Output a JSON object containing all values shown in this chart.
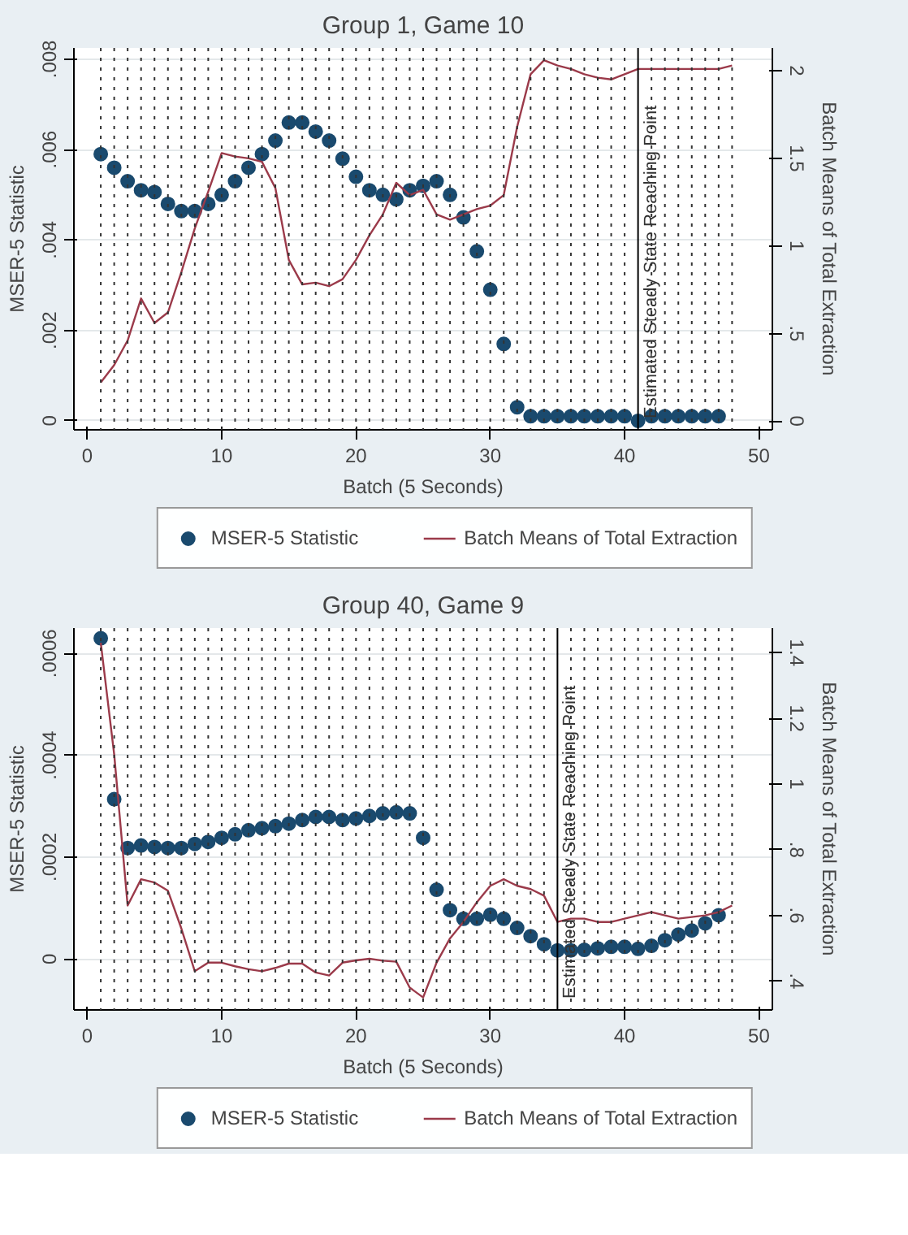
{
  "chart_data": [
    {
      "type": "scatter",
      "title": "Group 1, Game 10",
      "xlabel": "Batch (5 Seconds)",
      "ylabel": "MSER-5 Statistic",
      "y2label": "Batch Means of Total Extraction",
      "xlim": [
        -1,
        51
      ],
      "xticks": [
        0,
        10,
        20,
        30,
        40,
        50
      ],
      "ylim": [
        -0.0002,
        0.00825
      ],
      "yticks": [
        0,
        {
          "value": 0.002,
          "label": ".002"
        },
        {
          "value": 0.004,
          "label": ".004"
        },
        {
          "value": 0.006,
          "label": ".006"
        },
        {
          "value": 0.008,
          "label": ".008"
        }
      ],
      "y2lim": [
        -0.05,
        2.13
      ],
      "y2ticks": [
        0,
        {
          "value": 0.5,
          "label": ".5"
        },
        1,
        1.5,
        2
      ],
      "grid": "y",
      "legend": "bottom",
      "marker": "circle",
      "series": [
        {
          "name": "MSER-5 Statistic",
          "color": "#1a4a6e",
          "x": [
            1,
            2,
            3,
            4,
            5,
            6,
            7,
            8,
            9,
            10,
            11,
            12,
            13,
            14,
            15,
            16,
            17,
            18,
            19,
            20,
            21,
            22,
            23,
            24,
            25,
            26,
            27,
            28,
            29,
            30,
            31,
            32,
            33,
            34,
            35,
            36,
            37,
            38,
            39,
            40,
            41,
            42,
            43,
            44,
            45,
            46,
            47
          ],
          "values": [
            0.0059,
            0.0056,
            0.0053,
            0.0051,
            0.00506,
            0.0048,
            0.00464,
            0.00464,
            0.0048,
            0.005,
            0.0053,
            0.0056,
            0.0059,
            0.0062,
            0.0066,
            0.0066,
            0.0064,
            0.0062,
            0.0058,
            0.0054,
            0.0051,
            0.005,
            0.0049,
            0.0051,
            0.0052,
            0.0053,
            0.005,
            0.0045,
            0.00375,
            0.0029,
            0.0017,
            0.0003,
            0.0001,
            0.0001,
            0.0001,
            0.0001,
            0.0001,
            0.0001,
            0.0001,
            0.0001,
            0,
            0.0001,
            0.0001,
            0.0001,
            0.0001,
            0.0001,
            0.0001
          ]
        },
        {
          "name": "Batch Means of Total Extraction",
          "type": "line",
          "axis": "y2",
          "color": "#9b3a4a",
          "marker": "none",
          "x": [
            1,
            2,
            3,
            4,
            5,
            6,
            7,
            8,
            9,
            10,
            11,
            12,
            13,
            14,
            15,
            16,
            17,
            18,
            19,
            20,
            21,
            22,
            23,
            24,
            25,
            26,
            27,
            28,
            29,
            30,
            31,
            32,
            33,
            34,
            35,
            36,
            37,
            38,
            39,
            40,
            41,
            42,
            43,
            44,
            45,
            46,
            47,
            48
          ],
          "values": [
            0.22,
            0.32,
            0.46,
            0.7,
            0.56,
            0.62,
            0.85,
            1.1,
            1.31,
            1.53,
            1.51,
            1.5,
            1.48,
            1.33,
            0.92,
            0.78,
            0.79,
            0.77,
            0.81,
            0.92,
            1.06,
            1.18,
            1.36,
            1.29,
            1.32,
            1.18,
            1.15,
            1.18,
            1.21,
            1.23,
            1.29,
            1.68,
            1.98,
            2.06,
            2.03,
            2.01,
            1.98,
            1.96,
            1.95,
            1.98,
            2.01,
            2.01,
            2.01,
            2.01,
            2.01,
            2.01,
            2.01,
            2.03
          ]
        }
      ],
      "ref_lines": [
        {
          "axis": "x",
          "value": 41,
          "label": "Estimated Steady State Reaching Point",
          "color": "#000000",
          "line_style": "solid"
        },
        {
          "axis": "x",
          "value": 1,
          "line_style": "dotted"
        },
        {
          "axis": "x",
          "value": 2,
          "line_style": "dotted"
        },
        {
          "axis": "x",
          "value": 3,
          "line_style": "dotted"
        },
        {
          "axis": "x",
          "value": 4,
          "line_style": "dotted"
        },
        {
          "axis": "x",
          "value": 5,
          "line_style": "dotted"
        },
        {
          "axis": "x",
          "value": 6,
          "line_style": "dotted"
        },
        {
          "axis": "x",
          "value": 7,
          "line_style": "dotted"
        },
        {
          "axis": "x",
          "value": 8,
          "line_style": "dotted"
        },
        {
          "axis": "x",
          "value": 9,
          "line_style": "dotted"
        },
        {
          "axis": "x",
          "value": 10,
          "line_style": "dotted"
        },
        {
          "axis": "x",
          "value": 11,
          "line_style": "dotted"
        },
        {
          "axis": "x",
          "value": 12,
          "line_style": "dotted"
        },
        {
          "axis": "x",
          "value": 13,
          "line_style": "dotted"
        },
        {
          "axis": "x",
          "value": 14,
          "line_style": "dotted"
        },
        {
          "axis": "x",
          "value": 15,
          "line_style": "dotted"
        },
        {
          "axis": "x",
          "value": 16,
          "line_style": "dotted"
        },
        {
          "axis": "x",
          "value": 17,
          "line_style": "dotted"
        },
        {
          "axis": "x",
          "value": 18,
          "line_style": "dotted"
        },
        {
          "axis": "x",
          "value": 19,
          "line_style": "dotted"
        },
        {
          "axis": "x",
          "value": 20,
          "line_style": "dotted"
        },
        {
          "axis": "x",
          "value": 21,
          "line_style": "dotted"
        },
        {
          "axis": "x",
          "value": 22,
          "line_style": "dotted"
        },
        {
          "axis": "x",
          "value": 23,
          "line_style": "dotted"
        },
        {
          "axis": "x",
          "value": 24,
          "line_style": "dotted"
        },
        {
          "axis": "x",
          "value": 25,
          "line_style": "dotted"
        },
        {
          "axis": "x",
          "value": 26,
          "line_style": "dotted"
        },
        {
          "axis": "x",
          "value": 27,
          "line_style": "dotted"
        },
        {
          "axis": "x",
          "value": 28,
          "line_style": "dotted"
        },
        {
          "axis": "x",
          "value": 29,
          "line_style": "dotted"
        },
        {
          "axis": "x",
          "value": 30,
          "line_style": "dotted"
        },
        {
          "axis": "x",
          "value": 31,
          "line_style": "dotted"
        },
        {
          "axis": "x",
          "value": 32,
          "line_style": "dotted"
        },
        {
          "axis": "x",
          "value": 33,
          "line_style": "dotted"
        },
        {
          "axis": "x",
          "value": 34,
          "line_style": "dotted"
        },
        {
          "axis": "x",
          "value": 35,
          "line_style": "dotted"
        },
        {
          "axis": "x",
          "value": 36,
          "line_style": "dotted"
        },
        {
          "axis": "x",
          "value": 37,
          "line_style": "dotted"
        },
        {
          "axis": "x",
          "value": 38,
          "line_style": "dotted"
        },
        {
          "axis": "x",
          "value": 39,
          "line_style": "dotted"
        },
        {
          "axis": "x",
          "value": 40,
          "line_style": "dotted"
        },
        {
          "axis": "x",
          "value": 42,
          "line_style": "dotted"
        },
        {
          "axis": "x",
          "value": 43,
          "line_style": "dotted"
        },
        {
          "axis": "x",
          "value": 44,
          "line_style": "dotted"
        },
        {
          "axis": "x",
          "value": 45,
          "line_style": "dotted"
        },
        {
          "axis": "x",
          "value": 46,
          "line_style": "dotted"
        },
        {
          "axis": "x",
          "value": 47,
          "line_style": "dotted"
        },
        {
          "axis": "x",
          "value": 48,
          "line_style": "dotted"
        }
      ]
    },
    {
      "type": "scatter",
      "title": "Group 40, Game 9",
      "xlabel": "Batch (5 Seconds)",
      "ylabel": "MSER-5 Statistic",
      "y2label": "Batch Means of Total Extraction",
      "xlim": [
        -1,
        51
      ],
      "xticks": [
        0,
        10,
        20,
        30,
        40,
        50
      ],
      "ylim": [
        -0.0001,
        0.00065
      ],
      "yticks": [
        0,
        {
          "value": 0.0002,
          "label": ".0002"
        },
        {
          "value": 0.0004,
          "label": ".0004"
        },
        {
          "value": 0.0006,
          "label": ".0006"
        }
      ],
      "y2lim": [
        0.312,
        1.475
      ],
      "y2ticks": [
        {
          "value": 0.4,
          "label": ".4"
        },
        {
          "value": 0.6,
          "label": ".6"
        },
        {
          "value": 0.8,
          "label": ".8"
        },
        1,
        1.2,
        1.4
      ],
      "grid": "y",
      "legend": "bottom",
      "marker": "circle",
      "series": [
        {
          "name": "MSER-5 Statistic",
          "color": "#1a4a6e",
          "x": [
            1,
            2,
            3,
            4,
            5,
            6,
            7,
            8,
            9,
            10,
            11,
            12,
            13,
            14,
            15,
            16,
            17,
            18,
            19,
            20,
            21,
            22,
            23,
            24,
            25,
            26,
            27,
            28,
            29,
            30,
            31,
            32,
            33,
            34,
            35,
            36,
            37,
            38,
            39,
            40,
            41,
            42,
            43,
            44,
            45,
            46,
            47
          ],
          "values": [
            0.00063,
            0.000314,
            0.000218,
            0.000223,
            0.00022,
            0.000218,
            0.000218,
            0.000226,
            0.00023,
            0.000238,
            0.000245,
            0.000253,
            0.000257,
            0.000261,
            0.000266,
            0.000273,
            0.000279,
            0.000279,
            0.000273,
            0.000276,
            0.000281,
            0.000286,
            0.000288,
            0.000286,
            0.000238,
            0.000136,
            9.6e-05,
            7.9e-05,
            7.9e-05,
            8.7e-05,
            7.9e-05,
            6.1e-05,
            4.5e-05,
            2.9e-05,
            1.7e-05,
            1.7e-05,
            1.8e-05,
            2.1e-05,
            2.4e-05,
            2.4e-05,
            2e-05,
            2.6e-05,
            3.7e-05,
            4.8e-05,
            5.6e-05,
            7e-05,
            8.6e-05
          ]
        },
        {
          "name": "Batch Means of Total Extraction",
          "type": "line",
          "axis": "y2",
          "color": "#9b3a4a",
          "marker": "none",
          "x": [
            1,
            2,
            3,
            4,
            5,
            6,
            7,
            8,
            9,
            10,
            11,
            12,
            13,
            14,
            15,
            16,
            17,
            18,
            19,
            20,
            21,
            22,
            23,
            24,
            25,
            26,
            27,
            28,
            29,
            30,
            31,
            32,
            33,
            34,
            35,
            36,
            37,
            38,
            39,
            40,
            41,
            42,
            43,
            44,
            45,
            46,
            47,
            48
          ],
          "values": [
            1.43,
            1.09,
            0.63,
            0.71,
            0.7,
            0.675,
            0.56,
            0.43,
            0.456,
            0.456,
            0.445,
            0.436,
            0.43,
            0.44,
            0.453,
            0.453,
            0.426,
            0.417,
            0.456,
            0.463,
            0.468,
            0.462,
            0.459,
            0.38,
            0.35,
            0.456,
            0.53,
            0.58,
            0.64,
            0.69,
            0.71,
            0.69,
            0.68,
            0.66,
            0.58,
            0.59,
            0.59,
            0.58,
            0.58,
            0.59,
            0.6,
            0.61,
            0.6,
            0.59,
            0.595,
            0.6,
            0.61,
            0.63
          ]
        }
      ],
      "ref_lines": [
        {
          "axis": "x",
          "value": 35,
          "label": "Estimated Steady State Reaching Point",
          "color": "#000000",
          "line_style": "solid"
        },
        {
          "axis": "x",
          "value": 1,
          "line_style": "dotted"
        },
        {
          "axis": "x",
          "value": 2,
          "line_style": "dotted"
        },
        {
          "axis": "x",
          "value": 3,
          "line_style": "dotted"
        },
        {
          "axis": "x",
          "value": 4,
          "line_style": "dotted"
        },
        {
          "axis": "x",
          "value": 5,
          "line_style": "dotted"
        },
        {
          "axis": "x",
          "value": 6,
          "line_style": "dotted"
        },
        {
          "axis": "x",
          "value": 7,
          "line_style": "dotted"
        },
        {
          "axis": "x",
          "value": 8,
          "line_style": "dotted"
        },
        {
          "axis": "x",
          "value": 9,
          "line_style": "dotted"
        },
        {
          "axis": "x",
          "value": 10,
          "line_style": "dotted"
        },
        {
          "axis": "x",
          "value": 11,
          "line_style": "dotted"
        },
        {
          "axis": "x",
          "value": 12,
          "line_style": "dotted"
        },
        {
          "axis": "x",
          "value": 13,
          "line_style": "dotted"
        },
        {
          "axis": "x",
          "value": 14,
          "line_style": "dotted"
        },
        {
          "axis": "x",
          "value": 15,
          "line_style": "dotted"
        },
        {
          "axis": "x",
          "value": 16,
          "line_style": "dotted"
        },
        {
          "axis": "x",
          "value": 17,
          "line_style": "dotted"
        },
        {
          "axis": "x",
          "value": 18,
          "line_style": "dotted"
        },
        {
          "axis": "x",
          "value": 19,
          "line_style": "dotted"
        },
        {
          "axis": "x",
          "value": 20,
          "line_style": "dotted"
        },
        {
          "axis": "x",
          "value": 21,
          "line_style": "dotted"
        },
        {
          "axis": "x",
          "value": 22,
          "line_style": "dotted"
        },
        {
          "axis": "x",
          "value": 23,
          "line_style": "dotted"
        },
        {
          "axis": "x",
          "value": 24,
          "line_style": "dotted"
        },
        {
          "axis": "x",
          "value": 25,
          "line_style": "dotted"
        },
        {
          "axis": "x",
          "value": 26,
          "line_style": "dotted"
        },
        {
          "axis": "x",
          "value": 27,
          "line_style": "dotted"
        },
        {
          "axis": "x",
          "value": 28,
          "line_style": "dotted"
        },
        {
          "axis": "x",
          "value": 29,
          "line_style": "dotted"
        },
        {
          "axis": "x",
          "value": 30,
          "line_style": "dotted"
        },
        {
          "axis": "x",
          "value": 31,
          "line_style": "dotted"
        },
        {
          "axis": "x",
          "value": 32,
          "line_style": "dotted"
        },
        {
          "axis": "x",
          "value": 33,
          "line_style": "dotted"
        },
        {
          "axis": "x",
          "value": 34,
          "line_style": "dotted"
        },
        {
          "axis": "x",
          "value": 36,
          "line_style": "dotted"
        },
        {
          "axis": "x",
          "value": 37,
          "line_style": "dotted"
        },
        {
          "axis": "x",
          "value": 38,
          "line_style": "dotted"
        },
        {
          "axis": "x",
          "value": 39,
          "line_style": "dotted"
        },
        {
          "axis": "x",
          "value": 40,
          "line_style": "dotted"
        },
        {
          "axis": "x",
          "value": 41,
          "line_style": "dotted"
        },
        {
          "axis": "x",
          "value": 42,
          "line_style": "dotted"
        },
        {
          "axis": "x",
          "value": 43,
          "line_style": "dotted"
        },
        {
          "axis": "x",
          "value": 44,
          "line_style": "dotted"
        },
        {
          "axis": "x",
          "value": 45,
          "line_style": "dotted"
        },
        {
          "axis": "x",
          "value": 46,
          "line_style": "dotted"
        },
        {
          "axis": "x",
          "value": 47,
          "line_style": "dotted"
        },
        {
          "axis": "x",
          "value": 48,
          "line_style": "dotted"
        }
      ]
    }
  ]
}
